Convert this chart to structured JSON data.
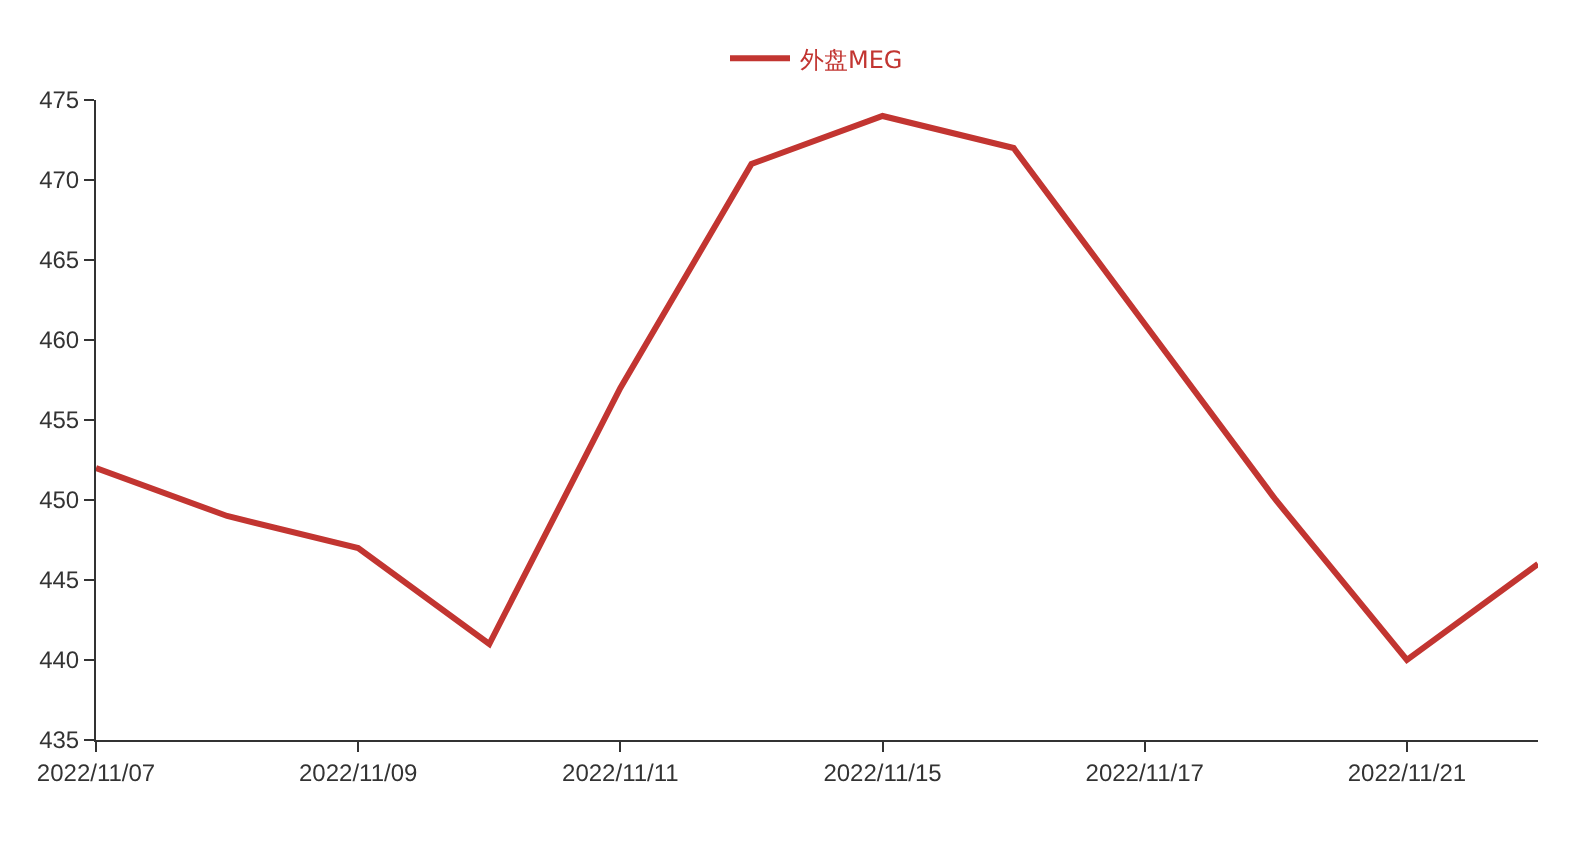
{
  "chart_data": {
    "type": "line",
    "categories": [
      "2022/11/07",
      null,
      "2022/11/09",
      null,
      "2022/11/11",
      null,
      "2022/11/15",
      null,
      "2022/11/17",
      null,
      "2022/11/21",
      null
    ],
    "series": [
      {
        "name": "外盘MEG",
        "color": "#c23531",
        "values": [
          452,
          449,
          447,
          441,
          457,
          471,
          474,
          472,
          461,
          450,
          440,
          446
        ]
      }
    ],
    "ylim": [
      435,
      475
    ],
    "yticks": [
      435,
      440,
      445,
      450,
      455,
      460,
      465,
      470,
      475
    ],
    "legend": "top",
    "grid": false
  }
}
